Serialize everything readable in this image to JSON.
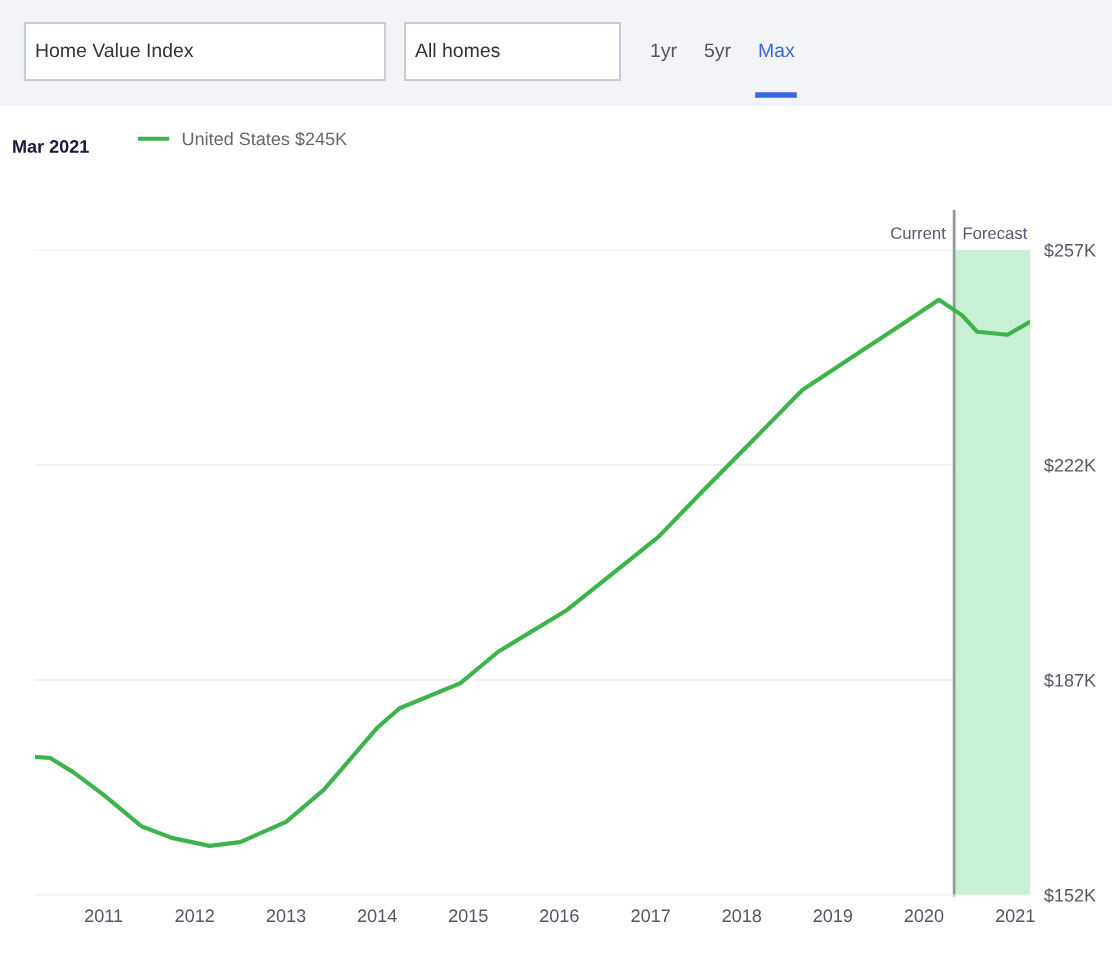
{
  "chart_data": {
    "type": "line",
    "title": "Mar 2021",
    "annotations": [
      "Home Value Index",
      "All homes",
      "1yr",
      "5yr",
      "Max"
    ],
    "x": [
      "2010-04",
      "2010-06",
      "2010-09",
      "2011-01",
      "2011-06",
      "2011-10",
      "2012-03",
      "2012-07",
      "2013-01",
      "2013-06",
      "2014-01",
      "2014-04",
      "2014-12",
      "2015-05",
      "2016-02",
      "2016-07",
      "2017-02",
      "2017-08",
      "2018-03",
      "2018-09",
      "2019-04",
      "2019-10",
      "2020-03",
      "2020-06",
      "2020-08",
      "2020-12",
      "2021-03"
    ],
    "series": [
      {
        "name": "United States $245K",
        "color": "#3cb44b",
        "values": [
          174.5,
          174.3,
          172.0,
          168.3,
          163.2,
          161.3,
          160.0,
          160.6,
          163.9,
          169.1,
          179.2,
          182.4,
          186.5,
          191.6,
          198.4,
          203.3,
          210.3,
          217.9,
          226.6,
          234.2,
          239.9,
          244.8,
          248.9,
          246.4,
          243.7,
          243.2,
          245.3
        ]
      }
    ],
    "xlim": [
      "2010-04",
      "2021-03"
    ],
    "xticks": [
      "2011",
      "2012",
      "2013",
      "2014",
      "2015",
      "2016",
      "2017",
      "2018",
      "2019",
      "2020",
      "2021"
    ],
    "ylim": [
      152,
      257
    ],
    "yticks": [
      {
        "value": 152,
        "label": "$152K"
      },
      {
        "value": 187,
        "label": "$187K"
      },
      {
        "value": 222,
        "label": "$222K"
      },
      {
        "value": 257,
        "label": "$257K"
      }
    ],
    "ref_lines": [
      {
        "axis": "x",
        "value": "2020-05",
        "label": "Current",
        "color": "#999999"
      }
    ],
    "bands": [
      {
        "axis": "x",
        "from": "2020-05",
        "to": "2021-03",
        "label": "Forecast",
        "color": "#c8f0d4"
      }
    ],
    "grid": "y",
    "legend": "top left",
    "marker": "none",
    "line_style": "solid"
  }
}
